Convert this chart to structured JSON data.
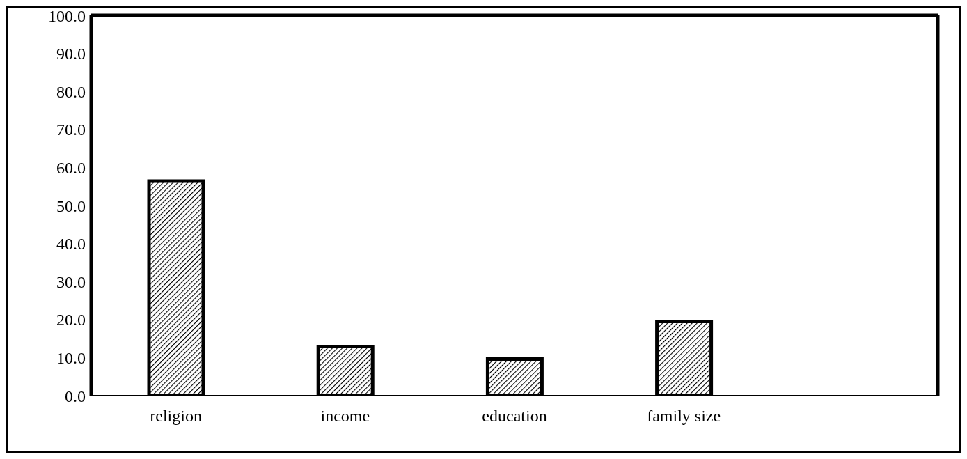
{
  "chart_data": {
    "type": "bar",
    "categories": [
      "religion",
      "income",
      "education",
      "family size",
      null
    ],
    "values": [
      56.4,
      12.9,
      9.6,
      19.5,
      null
    ],
    "color": "#000000",
    "ylim": [
      0,
      100
    ],
    "yticks": [
      {
        "value": 0,
        "label": "0.0"
      },
      {
        "value": 10,
        "label": "10.0"
      },
      {
        "value": 20,
        "label": "20.0"
      },
      {
        "value": 30,
        "label": "30.0"
      },
      {
        "value": 40,
        "label": "40.0"
      },
      {
        "value": 50,
        "label": "50.0"
      },
      {
        "value": 60,
        "label": "60.0"
      },
      {
        "value": 70,
        "label": "70.0"
      },
      {
        "value": 80,
        "label": "80.0"
      },
      {
        "value": 90,
        "label": "90.0"
      },
      {
        "value": 100,
        "label": "100.0"
      }
    ],
    "grid": false,
    "legend": false
  }
}
